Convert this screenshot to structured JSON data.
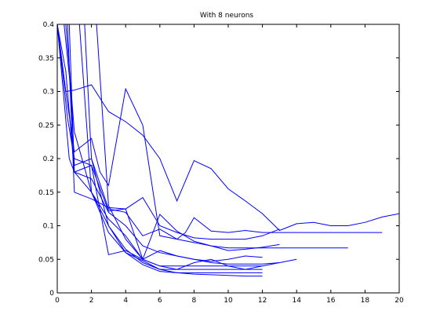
{
  "chart_data": {
    "type": "line",
    "title": "With 8 neurons",
    "xlabel": "",
    "ylabel": "",
    "xlim": [
      0,
      20
    ],
    "ylim": [
      0,
      0.4
    ],
    "xticks": [
      0,
      2,
      4,
      6,
      8,
      10,
      12,
      14,
      16,
      18,
      20
    ],
    "xtick_labels": [
      "0",
      "2",
      "4",
      "6",
      "8",
      "10",
      "12",
      "14",
      "16",
      "18",
      "20"
    ],
    "yticks": [
      0,
      0.05,
      0.1,
      0.15,
      0.2,
      0.25,
      0.3,
      0.35,
      0.4
    ],
    "ytick_labels": [
      "0",
      "0.05",
      "0.1",
      "0.15",
      "0.2",
      "0.25",
      "0.3",
      "0.35",
      "0.4"
    ],
    "grid": false,
    "legend": false,
    "line_color": "#0000ff",
    "series": [
      {
        "x": [
          0,
          0.5,
          1,
          2,
          3,
          4,
          5,
          6,
          7,
          8,
          9,
          10,
          11,
          12,
          13,
          14,
          15,
          16,
          17,
          18,
          19,
          20
        ],
        "y": [
          0.4,
          0.3,
          0.302,
          0.31,
          0.27,
          0.255,
          0.235,
          0.2,
          0.137,
          0.197,
          0.185,
          0.155,
          0.137,
          0.118,
          0.093,
          0.103,
          0.105,
          0.1,
          0.1,
          0.105,
          0.113,
          0.118
        ]
      },
      {
        "x": [
          0,
          0.5,
          1,
          2,
          2.5,
          3,
          4,
          5,
          6,
          7,
          7.5,
          8,
          9,
          10,
          11,
          12,
          13,
          14,
          15,
          16,
          17,
          18,
          19
        ],
        "y": [
          0.4,
          0.3,
          0.21,
          0.23,
          0.18,
          0.16,
          0.304,
          0.25,
          0.085,
          0.08,
          0.09,
          0.112,
          0.092,
          0.09,
          0.093,
          0.09,
          0.09,
          0.09,
          0.09,
          0.09,
          0.09,
          0.09,
          0.09
        ]
      },
      {
        "x": [
          0,
          0.6,
          1,
          2,
          3,
          4,
          5,
          6,
          7,
          8,
          9,
          10,
          11,
          12,
          13
        ],
        "y": [
          0.4,
          0.26,
          0.2,
          0.19,
          0.122,
          0.125,
          0.142,
          0.1,
          0.09,
          0.082,
          0.08,
          0.08,
          0.08,
          0.085,
          0.095
        ]
      },
      {
        "x": [
          0.4,
          0.8,
          1,
          2,
          3,
          4,
          5,
          6,
          7,
          8,
          9,
          10,
          11,
          12,
          13,
          14,
          15,
          16,
          17
        ],
        "y": [
          0.4,
          0.3,
          0.19,
          0.2,
          0.125,
          0.12,
          0.085,
          0.095,
          0.08,
          0.075,
          0.07,
          0.067,
          0.067,
          0.067,
          0.067,
          0.067,
          0.067,
          0.067,
          0.067
        ]
      },
      {
        "x": [
          0.6,
          1,
          2,
          3,
          4,
          5,
          6,
          7,
          8,
          9,
          10,
          11,
          12,
          13
        ],
        "y": [
          0.4,
          0.15,
          0.14,
          0.127,
          0.125,
          0.05,
          0.117,
          0.092,
          0.077,
          0.07,
          0.063,
          0.065,
          0.068,
          0.072
        ]
      },
      {
        "x": [
          0.7,
          1,
          2,
          3,
          4,
          5,
          6,
          7,
          8,
          9,
          10,
          11,
          12
        ],
        "y": [
          0.4,
          0.18,
          0.19,
          0.057,
          0.063,
          0.05,
          0.063,
          0.055,
          0.05,
          0.047,
          0.05,
          0.055,
          0.053
        ]
      },
      {
        "x": [
          0,
          0.5,
          1,
          2,
          3,
          4,
          5,
          6,
          7,
          8,
          9,
          10,
          11,
          12,
          13,
          14
        ],
        "y": [
          0.4,
          0.33,
          0.18,
          0.17,
          0.12,
          0.1,
          0.07,
          0.06,
          0.055,
          0.05,
          0.045,
          0.043,
          0.043,
          0.043,
          0.045,
          0.05
        ]
      },
      {
        "x": [
          0,
          0.7,
          1,
          2,
          3,
          4,
          5,
          6,
          7,
          8,
          9,
          10,
          11,
          12,
          13
        ],
        "y": [
          0.4,
          0.2,
          0.18,
          0.15,
          0.11,
          0.085,
          0.05,
          0.04,
          0.035,
          0.035,
          0.035,
          0.035,
          0.035,
          0.04,
          0.045
        ]
      },
      {
        "x": [
          0.5,
          1,
          2,
          3,
          4,
          5,
          6,
          7,
          8,
          9,
          10,
          11,
          12
        ],
        "y": [
          0.4,
          0.24,
          0.15,
          0.1,
          0.06,
          0.048,
          0.035,
          0.035,
          0.045,
          0.05,
          0.04,
          0.035,
          0.035
        ]
      },
      {
        "x": [
          1.3,
          2,
          3,
          4,
          5,
          6,
          7,
          8,
          9,
          10,
          11,
          12
        ],
        "y": [
          0.4,
          0.15,
          0.09,
          0.06,
          0.042,
          0.032,
          0.03,
          0.028,
          0.027,
          0.026,
          0.025,
          0.025
        ]
      },
      {
        "x": [
          1.6,
          2,
          3,
          4,
          5,
          6,
          7,
          8,
          9,
          10,
          11,
          12
        ],
        "y": [
          0.4,
          0.2,
          0.1,
          0.065,
          0.045,
          0.035,
          0.03,
          0.03,
          0.03,
          0.03,
          0.03,
          0.03
        ]
      },
      {
        "x": [
          2.3,
          3,
          4,
          5,
          6,
          7,
          8,
          9,
          10,
          11,
          12
        ],
        "y": [
          0.4,
          0.13,
          0.08,
          0.05,
          0.04,
          0.04,
          0.04,
          0.04,
          0.04,
          0.04,
          0.04
        ]
      }
    ]
  }
}
